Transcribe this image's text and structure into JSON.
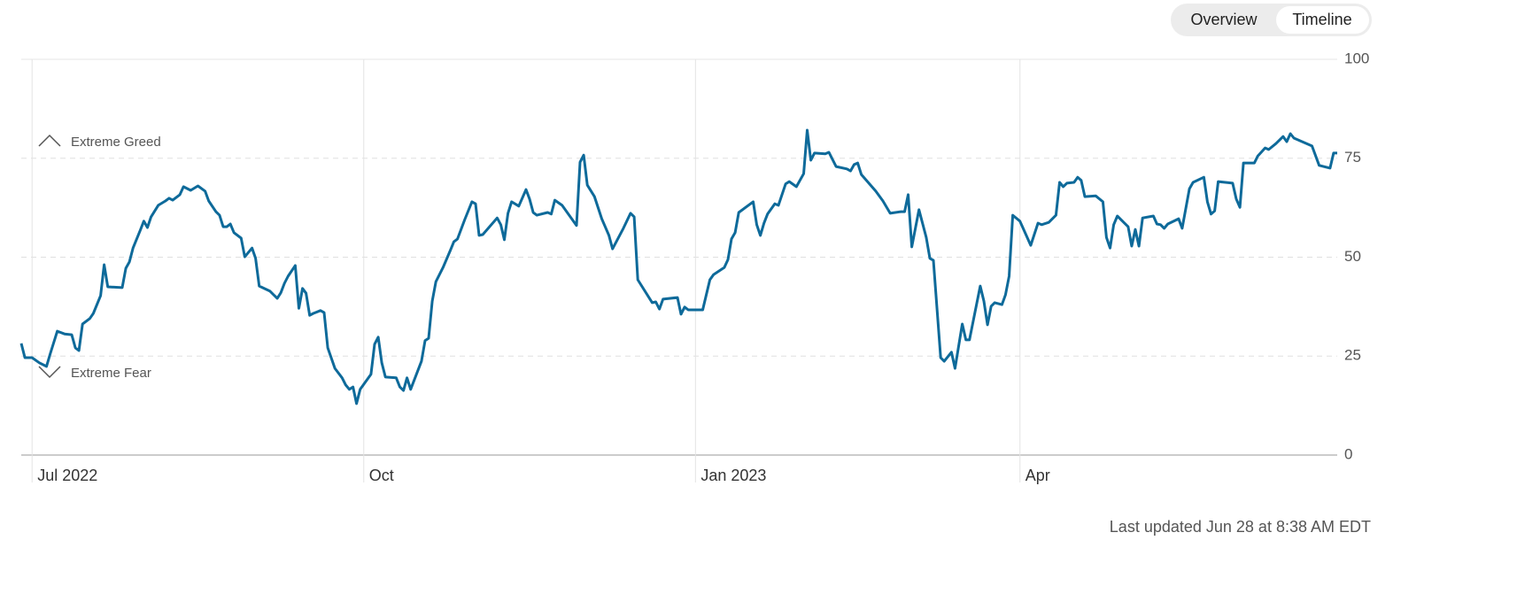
{
  "tabs": [
    "Overview",
    "Timeline"
  ],
  "active_tab": 1,
  "footer": "Last updated Jun 28 at 8:38 AM EDT",
  "chart_data": {
    "type": "line",
    "annotations": [
      "Extreme Greed",
      "Extreme Fear"
    ],
    "x": [
      0,
      1,
      3,
      5,
      7,
      8,
      10,
      12,
      14,
      15,
      16,
      17,
      19,
      20,
      22,
      23,
      24,
      28,
      29,
      30,
      31,
      33,
      34,
      35,
      36,
      38,
      40,
      41,
      42,
      44,
      45,
      47,
      49,
      51,
      52,
      54,
      55,
      56,
      57,
      58,
      59,
      61,
      62,
      64,
      65,
      66,
      69,
      70,
      71,
      72,
      73,
      74,
      76,
      77,
      78,
      79,
      80,
      81,
      83,
      84,
      85,
      87,
      89,
      90,
      91,
      92,
      93,
      94,
      97,
      98,
      99,
      100,
      101,
      104,
      105,
      106,
      107,
      108,
      111,
      112,
      113,
      114,
      115,
      117,
      119,
      120,
      121,
      123,
      125,
      126,
      127,
      128,
      132,
      133,
      134,
      135,
      136,
      138,
      140,
      141,
      142,
      143,
      146,
      147,
      148,
      150,
      154,
      155,
      156,
      157,
      159,
      161,
      163,
      164,
      167,
      169,
      170,
      171,
      175,
      176,
      177,
      178,
      182,
      183,
      184,
      185,
      189,
      191,
      192,
      195,
      196,
      197,
      198,
      199,
      203,
      204,
      205,
      206,
      207,
      209,
      210,
      212,
      213,
      215,
      217,
      218,
      219,
      220,
      223,
      224,
      226,
      229,
      230,
      231,
      232,
      233,
      237,
      239,
      241,
      244,
      245,
      246,
      247,
      249,
      251,
      252,
      253,
      255,
      256,
      258,
      259,
      261,
      262,
      263,
      266,
      267,
      268,
      269,
      270,
      272,
      273,
      274,
      275,
      277,
      280,
      282,
      283,
      285,
      287,
      288,
      289,
      290,
      292,
      293,
      294,
      295,
      298,
      300,
      301,
      302,
      303,
      304,
      307,
      308,
      309,
      310,
      311,
      314,
      315,
      316,
      317,
      318,
      321,
      322,
      324,
      325,
      328,
      329,
      330,
      331,
      332,
      336,
      337,
      338,
      339,
      342,
      343,
      345,
      346,
      348,
      350,
      351,
      352,
      353,
      358,
      360,
      363,
      364,
      365
    ],
    "series": [
      {
        "color": "#0e6a9a",
        "values": [
          28.2,
          24.6,
          24.6,
          23.3,
          22.4,
          25.5,
          31.3,
          30.6,
          30.4,
          27.1,
          26.4,
          33.1,
          34.5,
          35.8,
          40.3,
          48.1,
          42.5,
          42.3,
          47.2,
          48.8,
          52.3,
          56.8,
          59.1,
          57.5,
          60.2,
          63.1,
          64.2,
          64.9,
          64.4,
          65.8,
          67.8,
          66.9,
          68.0,
          66.7,
          64.2,
          61.5,
          60.6,
          57.7,
          57.7,
          58.4,
          56.2,
          54.8,
          50.1,
          52.3,
          49.7,
          42.7,
          41.4,
          40.5,
          39.6,
          41.0,
          43.4,
          45.2,
          47.9,
          37.1,
          42.1,
          40.9,
          35.3,
          35.8,
          36.5,
          36.0,
          27.1,
          21.9,
          19.5,
          17.7,
          16.6,
          17.2,
          13.0,
          16.6,
          20.4,
          28.0,
          29.8,
          23.3,
          19.7,
          19.5,
          17.2,
          16.3,
          19.5,
          16.6,
          23.7,
          28.9,
          29.5,
          38.9,
          43.8,
          47.4,
          51.7,
          53.9,
          54.6,
          59.5,
          64.0,
          63.5,
          55.5,
          55.7,
          59.9,
          58.2,
          54.4,
          61.1,
          64.0,
          62.9,
          67.1,
          64.7,
          61.3,
          60.6,
          61.3,
          60.9,
          64.4,
          63.1,
          58.0,
          74.0,
          75.8,
          68.2,
          65.3,
          59.7,
          55.5,
          52.1,
          57.3,
          61.1,
          60.2,
          44.3,
          38.5,
          38.7,
          36.9,
          39.4,
          39.8,
          35.6,
          37.4,
          36.7,
          36.7,
          44.3,
          45.6,
          47.4,
          49.4,
          54.6,
          56.2,
          61.3,
          64.0,
          58.2,
          55.5,
          58.6,
          60.9,
          63.5,
          63.1,
          68.5,
          69.1,
          67.8,
          71.1,
          82.1,
          74.5,
          76.3,
          76.1,
          76.5,
          72.9,
          72.3,
          71.8,
          73.4,
          73.8,
          70.9,
          66.7,
          64.2,
          61.1,
          61.5,
          61.5,
          65.8,
          52.6,
          62.0,
          55.0,
          49.7,
          49.2,
          24.6,
          23.7,
          26.0,
          21.9,
          33.1,
          29.1,
          29.1,
          42.7,
          38.9,
          32.9,
          37.6,
          38.5,
          38.0,
          40.5,
          45.2,
          60.6,
          59.1,
          53.0,
          58.6,
          58.2,
          58.8,
          60.6,
          68.9,
          67.8,
          68.7,
          68.9,
          70.2,
          69.4,
          65.3,
          65.5,
          64.0,
          55.0,
          52.3,
          58.2,
          60.4,
          57.7,
          52.8,
          57.0,
          52.8,
          59.9,
          60.4,
          58.4,
          58.2,
          57.3,
          58.4,
          59.7,
          57.3,
          67.3,
          68.9,
          70.2,
          64.0,
          60.9,
          61.7,
          69.1,
          68.7,
          64.7,
          62.6,
          73.8,
          73.8,
          75.6,
          77.6,
          77.2,
          78.7,
          80.5,
          79.2,
          81.2,
          80.1,
          78.1,
          73.2,
          72.5,
          76.3,
          76.3
        ]
      }
    ],
    "xlim": [
      0,
      365
    ],
    "xticks": [
      {
        "value": 3,
        "label": "Jul 2022"
      },
      {
        "value": 95,
        "label": "Oct"
      },
      {
        "value": 187,
        "label": "Jan 2023"
      },
      {
        "value": 277,
        "label": "Apr"
      }
    ],
    "ylim": [
      0,
      100
    ],
    "yticks": [
      0,
      25,
      50,
      75,
      100
    ],
    "grid": true
  }
}
